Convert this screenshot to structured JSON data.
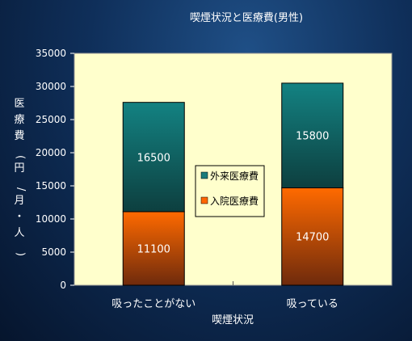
{
  "chart_data": {
    "type": "bar",
    "stacked": true,
    "title": "喫煙状況と医療費(男性)",
    "xlabel": "喫煙状況",
    "ylabel": "医療費(円/月・人)",
    "categories": [
      "吸ったことがない",
      "吸っている"
    ],
    "series": [
      {
        "name": "入院医療費",
        "values": [
          11100,
          14700
        ],
        "color": "#ff6600"
      },
      {
        "name": "外来医療費",
        "values": [
          16500,
          15800
        ],
        "color": "#1a7b7b"
      }
    ],
    "ylim": [
      0,
      35000
    ],
    "yticks": [
      "0",
      "5000",
      "10000",
      "15000",
      "20000",
      "25000",
      "30000",
      "35000"
    ],
    "grid": false,
    "legend": "center",
    "plot_background": "#ffffcc"
  }
}
